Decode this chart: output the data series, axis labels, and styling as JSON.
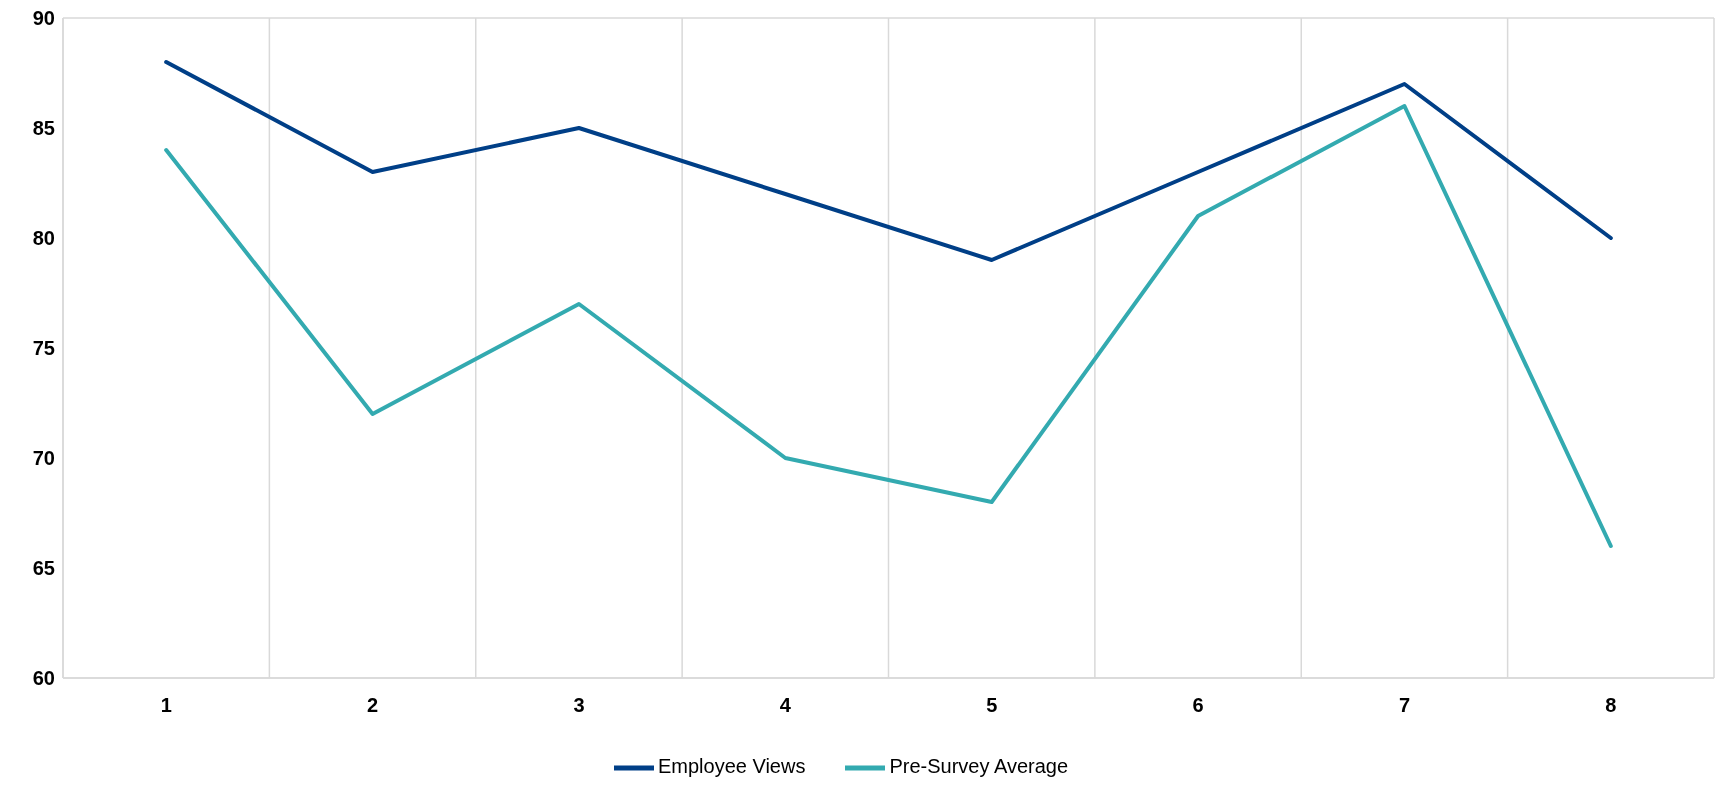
{
  "chart_data": {
    "type": "line",
    "categories": [
      "1",
      "2",
      "3",
      "4",
      "5",
      "6",
      "7",
      "8"
    ],
    "series": [
      {
        "name": "Employee Views",
        "color": "#003f87",
        "values": [
          88,
          83,
          85,
          82,
          79,
          83,
          87,
          80
        ]
      },
      {
        "name": "Pre-Survey Average",
        "color": "#33aab0",
        "values": [
          84,
          72,
          77,
          70,
          68,
          81,
          86,
          66
        ]
      }
    ],
    "ylim": [
      60,
      90
    ],
    "yticks": [
      60,
      65,
      70,
      75,
      80,
      85,
      90
    ],
    "grid": true,
    "legend": "bottom",
    "marker": "none",
    "line_style": "solid"
  }
}
